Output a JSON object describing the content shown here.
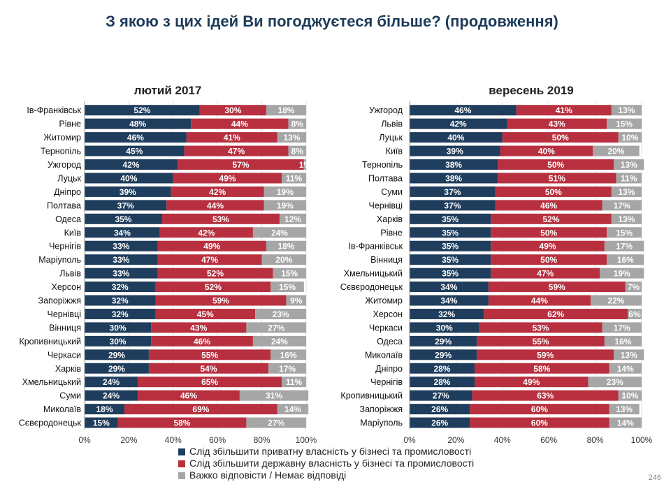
{
  "page": {
    "title": "З якою з цих ідей Ви погоджуєтеся більше? (продовження)",
    "page_number": "246"
  },
  "legend": [
    {
      "label": "Слід збільшити приватну власність у бізнесі та промисловості",
      "color": "#1f3d5c"
    },
    {
      "label": "Слід збільшити державну власність у бізнесі та промисловості",
      "color": "#b8303f"
    },
    {
      "label": "Важко відповісти / Немає відповіді",
      "color": "#a6a6a6"
    }
  ],
  "chart_data": [
    {
      "type": "bar",
      "orientation": "horizontal",
      "stacked": true,
      "title": "лютий 2017",
      "xlim": [
        0,
        100
      ],
      "xticks": [
        "0%",
        "20%",
        "40%",
        "60%",
        "80%",
        "100%"
      ],
      "categories": [
        "Ів-Франківськ",
        "Рівне",
        "Житомир",
        "Тернопіль",
        "Ужгород",
        "Луцьк",
        "Дніпро",
        "Полтава",
        "Одеса",
        "Київ",
        "Чернігів",
        "Маріуполь",
        "Львів",
        "Херсон",
        "Запоріжжя",
        "Чернівці",
        "Вінниця",
        "Кропивницький",
        "Черкаси",
        "Харків",
        "Хмельницький",
        "Суми",
        "Миколаїв",
        "Сєвєродонецьк"
      ],
      "series": [
        {
          "name": "Слід збільшити приватну власність у бізнесі та промисловості",
          "color": "#1f3d5c",
          "values": [
            52,
            48,
            46,
            45,
            42,
            40,
            39,
            37,
            35,
            34,
            33,
            33,
            33,
            32,
            32,
            32,
            30,
            30,
            29,
            29,
            24,
            24,
            18,
            15
          ]
        },
        {
          "name": "Слід збільшити державну власність у бізнесі та промисловості",
          "color": "#b8303f",
          "values": [
            30,
            44,
            41,
            47,
            57,
            49,
            42,
            44,
            53,
            42,
            49,
            47,
            52,
            52,
            59,
            45,
            43,
            46,
            55,
            54,
            65,
            46,
            69,
            58
          ]
        },
        {
          "name": "Важко відповісти / Немає відповіді",
          "color": "#a6a6a6",
          "values": [
            18,
            8,
            13,
            8,
            1,
            11,
            19,
            19,
            12,
            24,
            18,
            20,
            15,
            15,
            9,
            23,
            27,
            24,
            16,
            17,
            11,
            31,
            14,
            27
          ]
        }
      ]
    },
    {
      "type": "bar",
      "orientation": "horizontal",
      "stacked": true,
      "title": "вересень 2019",
      "xlim": [
        0,
        100
      ],
      "xticks": [
        "0%",
        "20%",
        "40%",
        "60%",
        "80%",
        "100%"
      ],
      "categories": [
        "Ужгород",
        "Львів",
        "Луцьк",
        "Київ",
        "Тернопіль",
        "Полтава",
        "Суми",
        "Чернівці",
        "Харків",
        "Рівне",
        "Ів-Франківськ",
        "Вінниця",
        "Хмельницький",
        "Сєвєродонецьк",
        "Житомир",
        "Херсон",
        "Черкаси",
        "Одеса",
        "Миколаїв",
        "Дніпро",
        "Чернігів",
        "Кропивницький",
        "Запоріжжя",
        "Маріуполь"
      ],
      "series": [
        {
          "name": "Слід збільшити приватну власність у бізнесі та промисловості",
          "color": "#1f3d5c",
          "values": [
            46,
            42,
            40,
            39,
            38,
            38,
            37,
            37,
            35,
            35,
            35,
            35,
            35,
            34,
            34,
            32,
            30,
            29,
            29,
            28,
            28,
            27,
            26,
            26
          ]
        },
        {
          "name": "Слід збільшити державну власність у бізнесі та промисловості",
          "color": "#b8303f",
          "values": [
            41,
            43,
            50,
            40,
            50,
            51,
            50,
            46,
            52,
            50,
            49,
            50,
            47,
            59,
            44,
            62,
            53,
            55,
            59,
            58,
            49,
            63,
            60,
            60
          ]
        },
        {
          "name": "Важко відповісти / Немає відповіді",
          "color": "#a6a6a6",
          "values": [
            13,
            15,
            10,
            20,
            13,
            11,
            13,
            17,
            13,
            15,
            17,
            16,
            19,
            7,
            22,
            6,
            17,
            16,
            13,
            14,
            23,
            10,
            13,
            14
          ]
        }
      ]
    }
  ]
}
